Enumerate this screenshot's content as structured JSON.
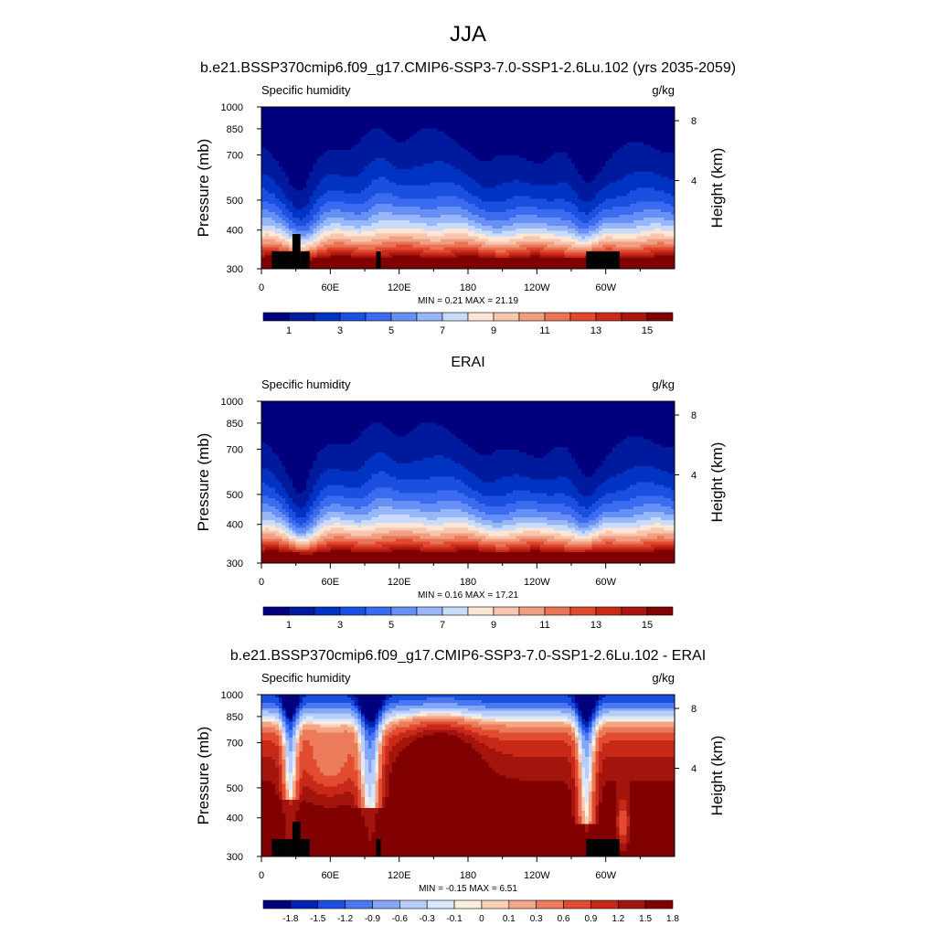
{
  "figure": {
    "title": "JJA"
  },
  "panels": [
    {
      "title": "b.e21.BSSP370cmip6.f09_g17.CMIP6-SSP3-7.0-SSP1-2.6Lu.102 (yrs 2035-2059)",
      "left_label": "Specific humidity",
      "right_label": "g/kg",
      "ylabel": "Pressure (mb)",
      "ylabel_right": "Height (km)",
      "x_ticks": [
        "0",
        "60E",
        "120E",
        "180",
        "120W",
        "60W"
      ],
      "y_ticks": [
        "300",
        "400",
        "500",
        "700",
        "850",
        "1000"
      ],
      "right_ticks": [
        "8",
        "4"
      ],
      "stats": "MIN =   0.21  MAX =  21.19",
      "colorbar_labels": [
        "1",
        "3",
        "5",
        "7",
        "9",
        "11",
        "13",
        "15"
      ],
      "kind": "abs",
      "topography": true
    },
    {
      "title": "ERAI",
      "left_label": "Specific humidity",
      "right_label": "g/kg",
      "ylabel": "Pressure (mb)",
      "ylabel_right": "Height (km)",
      "x_ticks": [
        "0",
        "60E",
        "120E",
        "180",
        "120W",
        "60W"
      ],
      "y_ticks": [
        "300",
        "400",
        "500",
        "700",
        "850",
        "1000"
      ],
      "right_ticks": [
        "8",
        "4"
      ],
      "stats": "MIN =   0.16  MAX =  17.21",
      "colorbar_labels": [
        "1",
        "3",
        "5",
        "7",
        "9",
        "11",
        "13",
        "15"
      ],
      "kind": "abs",
      "topography": false
    },
    {
      "title": "b.e21.BSSP370cmip6.f09_g17.CMIP6-SSP3-7.0-SSP1-2.6Lu.102 - ERAI",
      "left_label": "Specific humidity",
      "right_label": "g/kg",
      "ylabel": "Pressure (mb)",
      "ylabel_right": "Height (km)",
      "x_ticks": [
        "0",
        "60E",
        "120E",
        "180",
        "120W",
        "60W"
      ],
      "y_ticks": [
        "300",
        "400",
        "500",
        "700",
        "850",
        "1000"
      ],
      "right_ticks": [
        "8",
        "4"
      ],
      "stats": "MIN =  -0.15  MAX =   6.51",
      "colorbar_labels": [
        "-1.8",
        "-1.5",
        "-1.2",
        "-0.9",
        "-0.6",
        "-0.3",
        "-0.1",
        "0",
        "0.1",
        "0.3",
        "0.6",
        "0.9",
        "1.2",
        "1.5",
        "1.8"
      ],
      "kind": "diff",
      "topography": true
    }
  ],
  "chart_data": [
    {
      "type": "heatmap",
      "title": "b.e21.BSSP370cmip6.f09_g17.CMIP6-SSP3-7.0-SSP1-2.6Lu.102 (yrs 2035-2059)",
      "variable": "Specific humidity",
      "units": "g/kg",
      "xlabel": "",
      "ylabel": "Pressure (mb)",
      "ylabel_right": "Height (km)",
      "x_ticks": [
        0,
        60,
        120,
        180,
        240,
        300
      ],
      "y_ticks": [
        300,
        400,
        500,
        700,
        850,
        1000
      ],
      "xlim": [
        0,
        360
      ],
      "ylim": [
        1000,
        300
      ],
      "levels": [
        0,
        1,
        2,
        3,
        4,
        5,
        6,
        7,
        8,
        9,
        10,
        11,
        12,
        13,
        14,
        15,
        16
      ],
      "min": 0.21,
      "max": 21.19
    },
    {
      "type": "heatmap",
      "title": "ERAI",
      "variable": "Specific humidity",
      "units": "g/kg",
      "xlabel": "",
      "ylabel": "Pressure (mb)",
      "ylabel_right": "Height (km)",
      "x_ticks": [
        0,
        60,
        120,
        180,
        240,
        300
      ],
      "y_ticks": [
        300,
        400,
        500,
        700,
        850,
        1000
      ],
      "xlim": [
        0,
        360
      ],
      "ylim": [
        1000,
        300
      ],
      "levels": [
        0,
        1,
        2,
        3,
        4,
        5,
        6,
        7,
        8,
        9,
        10,
        11,
        12,
        13,
        14,
        15,
        16
      ],
      "min": 0.16,
      "max": 17.21
    },
    {
      "type": "heatmap",
      "title": "b.e21.BSSP370cmip6.f09_g17.CMIP6-SSP3-7.0-SSP1-2.6Lu.102 - ERAI",
      "variable": "Specific humidity",
      "units": "g/kg",
      "xlabel": "",
      "ylabel": "Pressure (mb)",
      "ylabel_right": "Height (km)",
      "x_ticks": [
        0,
        60,
        120,
        180,
        240,
        300
      ],
      "y_ticks": [
        300,
        400,
        500,
        700,
        850,
        1000
      ],
      "xlim": [
        0,
        360
      ],
      "ylim": [
        1000,
        300
      ],
      "levels": [
        -1.8,
        -1.5,
        -1.2,
        -0.9,
        -0.6,
        -0.3,
        -0.1,
        0,
        0.1,
        0.3,
        0.6,
        0.9,
        1.2,
        1.5,
        1.8
      ],
      "min": -0.15,
      "max": 6.51
    }
  ],
  "palettes": {
    "abs": [
      "#00007f",
      "#001a9e",
      "#0033c1",
      "#1a4fe0",
      "#3b6bef",
      "#6690f5",
      "#98b7f8",
      "#c8dbfb",
      "#fde6d6",
      "#f7c6ad",
      "#f19f82",
      "#ea7456",
      "#e0482f",
      "#c92a1a",
      "#a8160f",
      "#800000"
    ],
    "diff": [
      "#00007f",
      "#0023b5",
      "#1a4fe0",
      "#4a78f2",
      "#84a6f7",
      "#b8cdfa",
      "#dbe7fc",
      "#fdeedd",
      "#f9cfb5",
      "#f3a787",
      "#ec7b5c",
      "#e14b30",
      "#c82818",
      "#a3140c",
      "#800000"
    ]
  }
}
